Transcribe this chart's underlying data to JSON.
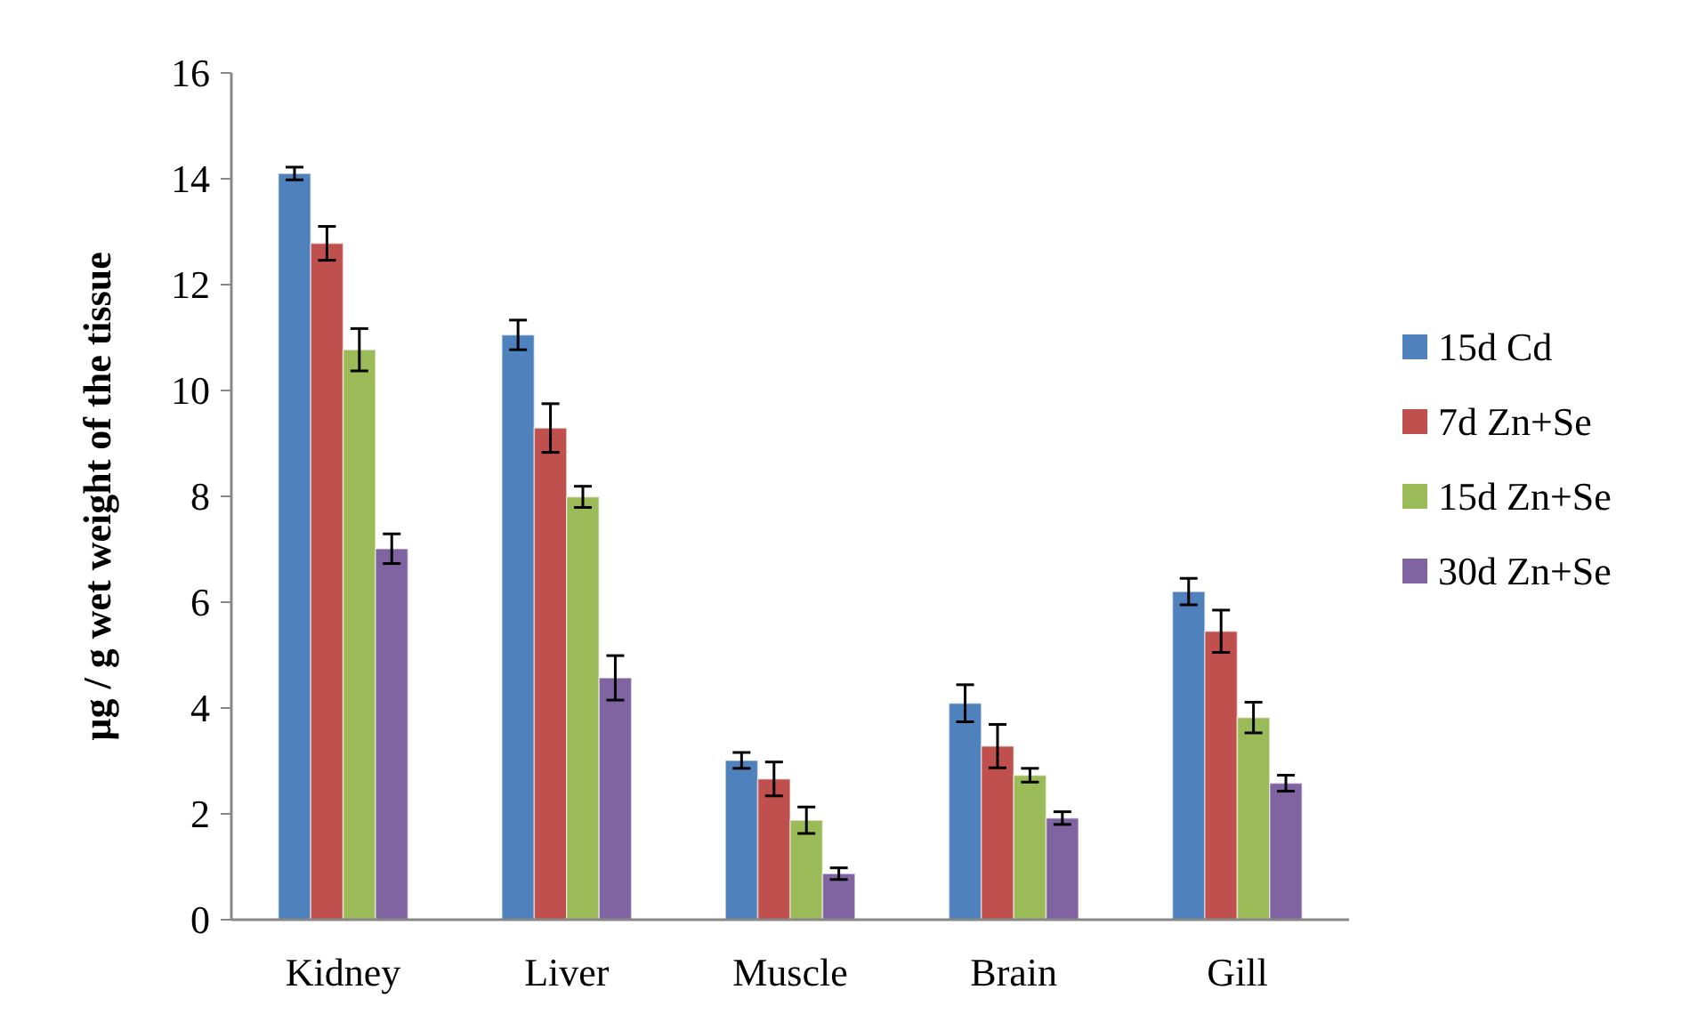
{
  "chart_data": {
    "type": "bar",
    "ylabel": "µg / g wet weight of the tissue",
    "categories": [
      "Kidney",
      "Liver",
      "Muscle",
      "Brain",
      "Gill"
    ],
    "ylim": [
      0,
      16
    ],
    "yticks": [
      0,
      2,
      4,
      6,
      8,
      10,
      12,
      14,
      16
    ],
    "grid": false,
    "legend": "right",
    "series": [
      {
        "name": "15d Cd",
        "color": "#4f81bd",
        "values": [
          14.1,
          11.05,
          3.01,
          4.09,
          6.2
        ],
        "errors": [
          0.12,
          0.28,
          0.15,
          0.35,
          0.25
        ]
      },
      {
        "name": "7d Zn+Se",
        "color": "#c0504d",
        "values": [
          12.78,
          9.29,
          2.66,
          3.28,
          5.45
        ],
        "errors": [
          0.32,
          0.46,
          0.32,
          0.41,
          0.4
        ]
      },
      {
        "name": "15d Zn+Se",
        "color": "#9bbb59",
        "values": [
          10.77,
          7.99,
          1.88,
          2.73,
          3.82
        ],
        "errors": [
          0.4,
          0.2,
          0.25,
          0.13,
          0.29
        ]
      },
      {
        "name": "30d Zn+Se",
        "color": "#8064a2",
        "values": [
          7.01,
          4.57,
          0.87,
          1.92,
          2.58
        ],
        "errors": [
          0.28,
          0.42,
          0.11,
          0.12,
          0.15
        ]
      }
    ]
  }
}
